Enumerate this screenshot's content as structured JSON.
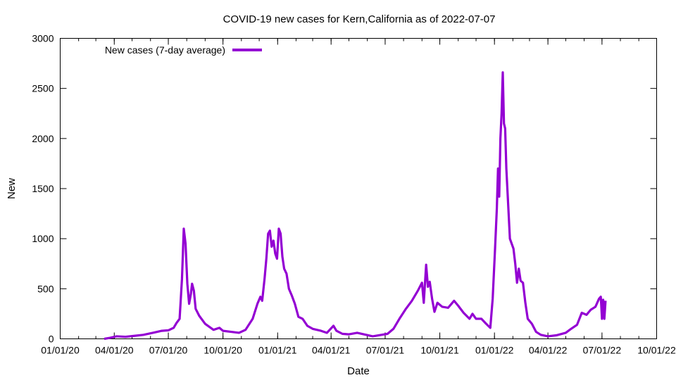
{
  "chart_data": {
    "type": "line",
    "title": "COVID-19 new cases for Kern,California as of 2022-07-07",
    "xlabel": "Date",
    "ylabel": "New",
    "ylim": [
      0,
      3000
    ],
    "yticks": [
      0,
      500,
      1000,
      1500,
      2000,
      2500,
      3000
    ],
    "xlim": [
      "2020-01-01",
      "2022-10-01"
    ],
    "xticks": [
      "01/01/20",
      "04/01/20",
      "07/01/20",
      "10/01/20",
      "01/01/21",
      "04/01/21",
      "07/01/21",
      "10/01/21",
      "01/01/22",
      "04/01/22",
      "07/01/22",
      "10/01/22"
    ],
    "legend_position": "top-left",
    "grid": false,
    "series": [
      {
        "name": "New cases (7-day average)",
        "color": "#9400d3",
        "points": [
          [
            "2020-03-15",
            0
          ],
          [
            "2020-03-25",
            10
          ],
          [
            "2020-04-05",
            25
          ],
          [
            "2020-04-20",
            20
          ],
          [
            "2020-05-05",
            30
          ],
          [
            "2020-05-20",
            40
          ],
          [
            "2020-06-05",
            60
          ],
          [
            "2020-06-20",
            80
          ],
          [
            "2020-07-01",
            85
          ],
          [
            "2020-07-10",
            110
          ],
          [
            "2020-07-15",
            160
          ],
          [
            "2020-07-20",
            200
          ],
          [
            "2020-07-24",
            600
          ],
          [
            "2020-07-27",
            1100
          ],
          [
            "2020-07-30",
            950
          ],
          [
            "2020-08-02",
            550
          ],
          [
            "2020-08-05",
            350
          ],
          [
            "2020-08-08",
            450
          ],
          [
            "2020-08-10",
            550
          ],
          [
            "2020-08-13",
            480
          ],
          [
            "2020-08-16",
            300
          ],
          [
            "2020-08-22",
            230
          ],
          [
            "2020-09-01",
            150
          ],
          [
            "2020-09-15",
            90
          ],
          [
            "2020-09-25",
            110
          ],
          [
            "2020-10-01",
            80
          ],
          [
            "2020-10-15",
            70
          ],
          [
            "2020-10-28",
            60
          ],
          [
            "2020-11-08",
            90
          ],
          [
            "2020-11-20",
            200
          ],
          [
            "2020-11-28",
            350
          ],
          [
            "2020-12-03",
            420
          ],
          [
            "2020-12-06",
            380
          ],
          [
            "2020-12-10",
            600
          ],
          [
            "2020-12-13",
            800
          ],
          [
            "2020-12-16",
            1050
          ],
          [
            "2020-12-19",
            1080
          ],
          [
            "2020-12-22",
            920
          ],
          [
            "2020-12-25",
            980
          ],
          [
            "2020-12-28",
            850
          ],
          [
            "2020-12-31",
            800
          ],
          [
            "2021-01-03",
            1100
          ],
          [
            "2021-01-06",
            1050
          ],
          [
            "2021-01-09",
            820
          ],
          [
            "2021-01-12",
            700
          ],
          [
            "2021-01-16",
            650
          ],
          [
            "2021-01-20",
            500
          ],
          [
            "2021-01-25",
            430
          ],
          [
            "2021-01-30",
            350
          ],
          [
            "2021-02-05",
            220
          ],
          [
            "2021-02-12",
            200
          ],
          [
            "2021-02-20",
            130
          ],
          [
            "2021-03-01",
            100
          ],
          [
            "2021-03-15",
            80
          ],
          [
            "2021-03-25",
            60
          ],
          [
            "2021-04-05",
            130
          ],
          [
            "2021-04-10",
            80
          ],
          [
            "2021-04-20",
            50
          ],
          [
            "2021-05-01",
            45
          ],
          [
            "2021-05-15",
            60
          ],
          [
            "2021-05-30",
            40
          ],
          [
            "2021-06-10",
            25
          ],
          [
            "2021-06-25",
            40
          ],
          [
            "2021-07-05",
            50
          ],
          [
            "2021-07-15",
            100
          ],
          [
            "2021-07-25",
            200
          ],
          [
            "2021-08-05",
            300
          ],
          [
            "2021-08-15",
            380
          ],
          [
            "2021-08-25",
            480
          ],
          [
            "2021-09-01",
            560
          ],
          [
            "2021-09-04",
            360
          ],
          [
            "2021-09-08",
            740
          ],
          [
            "2021-09-11",
            520
          ],
          [
            "2021-09-14",
            570
          ],
          [
            "2021-09-18",
            400
          ],
          [
            "2021-09-22",
            270
          ],
          [
            "2021-09-27",
            360
          ],
          [
            "2021-10-05",
            320
          ],
          [
            "2021-10-15",
            310
          ],
          [
            "2021-10-25",
            380
          ],
          [
            "2021-11-01",
            330
          ],
          [
            "2021-11-10",
            260
          ],
          [
            "2021-11-20",
            200
          ],
          [
            "2021-11-25",
            250
          ],
          [
            "2021-12-01",
            200
          ],
          [
            "2021-12-10",
            200
          ],
          [
            "2021-12-18",
            150
          ],
          [
            "2021-12-25",
            110
          ],
          [
            "2021-12-29",
            400
          ],
          [
            "2022-01-02",
            900
          ],
          [
            "2022-01-05",
            1300
          ],
          [
            "2022-01-07",
            1700
          ],
          [
            "2022-01-09",
            1420
          ],
          [
            "2022-01-11",
            2000
          ],
          [
            "2022-01-13",
            2250
          ],
          [
            "2022-01-15",
            2660
          ],
          [
            "2022-01-17",
            2150
          ],
          [
            "2022-01-19",
            2100
          ],
          [
            "2022-01-21",
            1700
          ],
          [
            "2022-01-24",
            1350
          ],
          [
            "2022-01-27",
            1000
          ],
          [
            "2022-01-30",
            950
          ],
          [
            "2022-02-02",
            900
          ],
          [
            "2022-02-05",
            750
          ],
          [
            "2022-02-08",
            560
          ],
          [
            "2022-02-11",
            700
          ],
          [
            "2022-02-14",
            580
          ],
          [
            "2022-02-18",
            560
          ],
          [
            "2022-02-22",
            360
          ],
          [
            "2022-02-26",
            200
          ],
          [
            "2022-03-05",
            150
          ],
          [
            "2022-03-12",
            70
          ],
          [
            "2022-03-20",
            40
          ],
          [
            "2022-04-01",
            25
          ],
          [
            "2022-04-15",
            35
          ],
          [
            "2022-05-01",
            60
          ],
          [
            "2022-05-10",
            100
          ],
          [
            "2022-05-20",
            140
          ],
          [
            "2022-05-28",
            260
          ],
          [
            "2022-06-05",
            240
          ],
          [
            "2022-06-12",
            290
          ],
          [
            "2022-06-20",
            320
          ],
          [
            "2022-06-26",
            400
          ],
          [
            "2022-06-29",
            420
          ],
          [
            "2022-07-01",
            200
          ],
          [
            "2022-07-03",
            390
          ],
          [
            "2022-07-05",
            200
          ],
          [
            "2022-07-07",
            380
          ]
        ]
      }
    ]
  }
}
